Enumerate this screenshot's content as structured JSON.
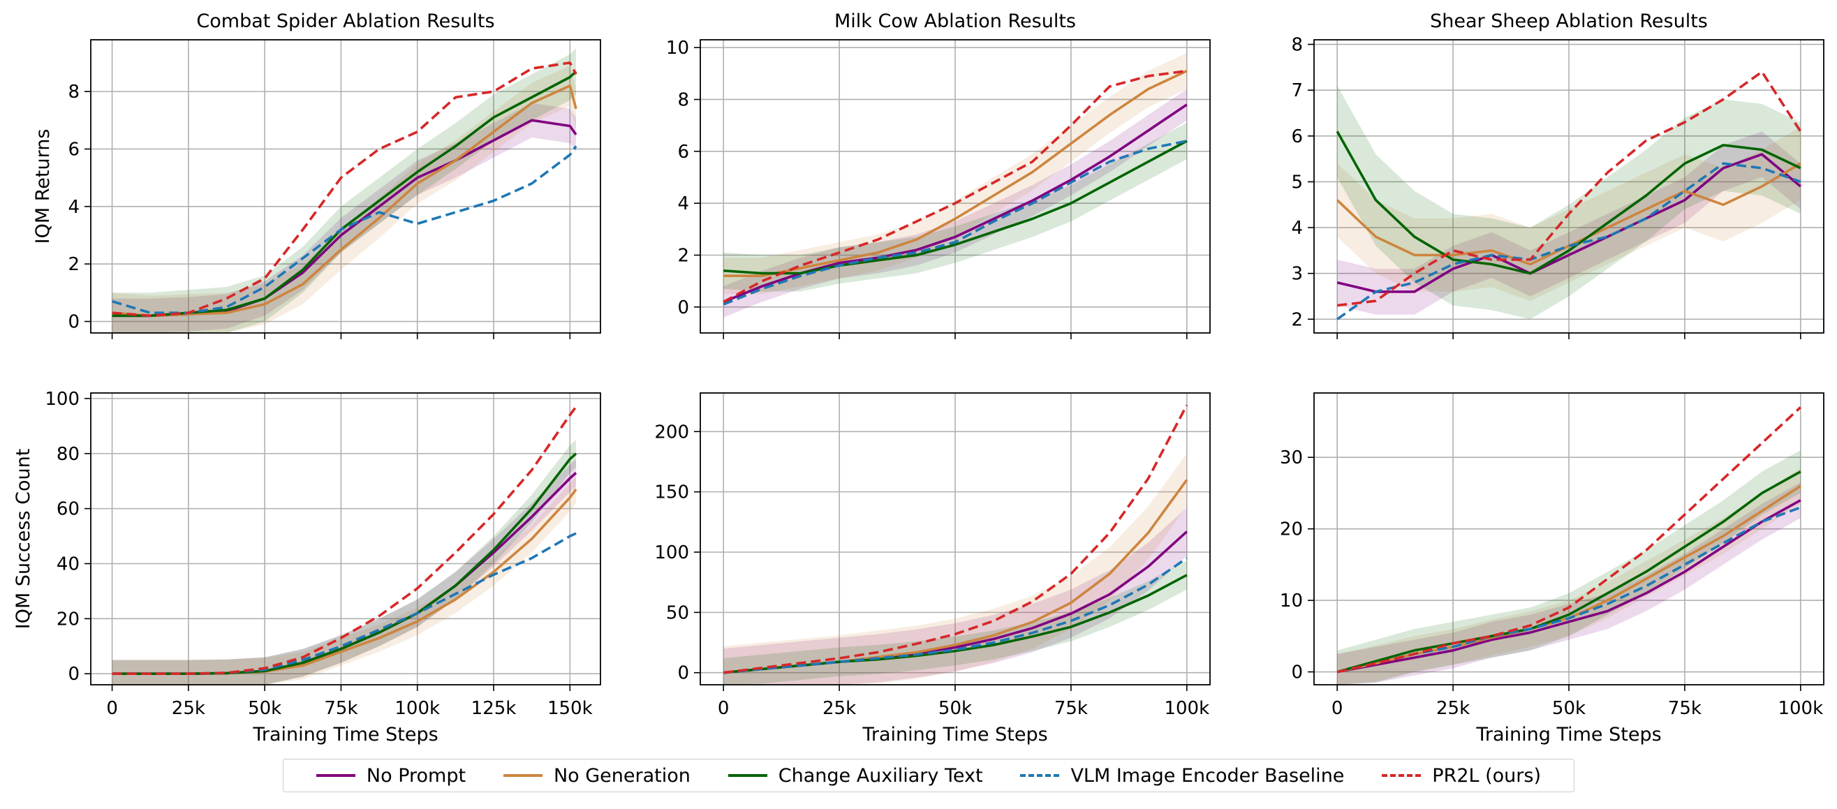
{
  "legend": [
    {
      "name": "No Prompt",
      "color": "#800080",
      "dash": false
    },
    {
      "name": "No Generation",
      "color": "#cd853f",
      "dash": false
    },
    {
      "name": "Change Auxiliary Text",
      "color": "#006400",
      "dash": false
    },
    {
      "name": "VLM Image Encoder Baseline",
      "color": "#1f77b4",
      "dash": true
    },
    {
      "name": "PR2L (ours)",
      "color": "#d62728",
      "dash": true
    }
  ],
  "chart_data": [
    {
      "type": "line",
      "title": "Combat Spider Ablation Results",
      "xlabel": "",
      "ylabel": "IQM Returns",
      "xlim": [
        -7000,
        160000
      ],
      "ylim": [
        -0.4,
        9.8
      ],
      "xticks": [
        0,
        25000,
        50000,
        75000,
        100000,
        125000,
        150000
      ],
      "xtick_labels": [
        "",
        "",
        "",
        "",
        "",
        "",
        ""
      ],
      "yticks": [
        0,
        2,
        4,
        6,
        8
      ],
      "ytick_labels": [
        "0",
        "2",
        "4",
        "6",
        "8"
      ],
      "grid": true,
      "x": [
        0,
        12500,
        25000,
        37500,
        50000,
        62500,
        75000,
        87500,
        100000,
        112500,
        125000,
        137500,
        150000,
        152000
      ],
      "series": [
        {
          "name": "No Prompt",
          "values": [
            0.2,
            0.2,
            0.25,
            0.35,
            0.8,
            1.7,
            3.0,
            4.0,
            5.0,
            5.6,
            6.3,
            7.0,
            6.8,
            6.5
          ],
          "band": 0.6
        },
        {
          "name": "No Generation",
          "values": [
            0.3,
            0.2,
            0.25,
            0.3,
            0.6,
            1.3,
            2.5,
            3.6,
            4.8,
            5.6,
            6.6,
            7.6,
            8.2,
            7.4
          ],
          "band": 0.7
        },
        {
          "name": "Change Auxiliary Text",
          "values": [
            0.2,
            0.2,
            0.3,
            0.4,
            0.8,
            1.8,
            3.2,
            4.2,
            5.2,
            6.1,
            7.1,
            7.8,
            8.5,
            8.7
          ],
          "band": 0.8
        },
        {
          "name": "VLM Image Encoder Baseline",
          "values": [
            0.7,
            0.3,
            0.3,
            0.5,
            1.2,
            2.2,
            3.2,
            3.8,
            3.4,
            3.8,
            4.2,
            4.8,
            5.8,
            6.1
          ],
          "band": 0
        },
        {
          "name": "PR2L (ours)",
          "values": [
            0.3,
            0.2,
            0.3,
            0.8,
            1.5,
            3.2,
            5.0,
            6.0,
            6.6,
            7.8,
            8.0,
            8.8,
            9.0,
            8.6
          ],
          "band": 0
        }
      ]
    },
    {
      "type": "line",
      "title": "Milk Cow Ablation Results",
      "xlabel": "",
      "ylabel": "",
      "xlim": [
        -5000,
        105000
      ],
      "ylim": [
        -1.0,
        10.3
      ],
      "xticks": [
        0,
        25000,
        50000,
        75000,
        100000
      ],
      "xtick_labels": [
        "",
        "",
        "",
        "",
        ""
      ],
      "yticks": [
        0,
        2,
        4,
        6,
        8,
        10
      ],
      "ytick_labels": [
        "0",
        "2",
        "4",
        "6",
        "8",
        "10"
      ],
      "grid": true,
      "x": [
        0,
        8333,
        16667,
        25000,
        33333,
        41667,
        50000,
        58333,
        66667,
        75000,
        83333,
        91667,
        100000
      ],
      "series": [
        {
          "name": "No Prompt",
          "values": [
            0.2,
            0.8,
            1.3,
            1.7,
            1.9,
            2.2,
            2.7,
            3.4,
            4.1,
            4.9,
            5.8,
            6.8,
            7.8
          ],
          "band": 0.6
        },
        {
          "name": "No Generation",
          "values": [
            1.2,
            1.2,
            1.5,
            1.8,
            2.1,
            2.6,
            3.4,
            4.3,
            5.2,
            6.3,
            7.4,
            8.4,
            9.1
          ],
          "band": 0.7
        },
        {
          "name": "Change Auxiliary Text",
          "values": [
            1.4,
            1.3,
            1.3,
            1.6,
            1.8,
            2.0,
            2.4,
            2.9,
            3.4,
            4.0,
            4.8,
            5.6,
            6.4
          ],
          "band": 0.7
        },
        {
          "name": "VLM Image Encoder Baseline",
          "values": [
            0.1,
            0.7,
            1.2,
            1.6,
            1.9,
            2.1,
            2.5,
            3.3,
            4.0,
            4.8,
            5.6,
            6.1,
            6.4
          ],
          "band": 0
        },
        {
          "name": "PR2L (ours)",
          "values": [
            0.2,
            1.0,
            1.6,
            2.1,
            2.6,
            3.3,
            4.0,
            4.8,
            5.6,
            7.0,
            8.5,
            8.9,
            9.1
          ],
          "band": 0
        }
      ]
    },
    {
      "type": "line",
      "title": "Shear Sheep Ablation Results",
      "xlabel": "",
      "ylabel": "",
      "xlim": [
        -5000,
        105000
      ],
      "ylim": [
        1.7,
        8.1
      ],
      "xticks": [
        0,
        25000,
        50000,
        75000,
        100000
      ],
      "xtick_labels": [
        "",
        "",
        "",
        "",
        ""
      ],
      "yticks": [
        2,
        3,
        4,
        5,
        6,
        7,
        8
      ],
      "ytick_labels": [
        "2",
        "3",
        "4",
        "5",
        "6",
        "7",
        "8"
      ],
      "grid": true,
      "x": [
        0,
        8333,
        16667,
        25000,
        33333,
        41667,
        50000,
        58333,
        66667,
        75000,
        83333,
        91667,
        100000
      ],
      "series": [
        {
          "name": "No Prompt",
          "values": [
            2.8,
            2.6,
            2.6,
            3.1,
            3.4,
            3.0,
            3.4,
            3.8,
            4.2,
            4.6,
            5.3,
            5.6,
            4.9
          ],
          "band": 0.5
        },
        {
          "name": "No Generation",
          "values": [
            4.6,
            3.8,
            3.4,
            3.4,
            3.5,
            3.2,
            3.6,
            4.0,
            4.4,
            4.8,
            4.5,
            4.9,
            5.4
          ],
          "band": 0.8
        },
        {
          "name": "Change Auxiliary Text",
          "values": [
            6.1,
            4.6,
            3.8,
            3.3,
            3.2,
            3.0,
            3.5,
            4.1,
            4.7,
            5.4,
            5.8,
            5.7,
            5.3
          ],
          "band": 1.0
        },
        {
          "name": "VLM Image Encoder Baseline",
          "values": [
            2.0,
            2.6,
            2.8,
            3.2,
            3.4,
            3.3,
            3.6,
            3.8,
            4.2,
            4.8,
            5.4,
            5.3,
            5.0
          ],
          "band": 0
        },
        {
          "name": "PR2L (ours)",
          "values": [
            2.3,
            2.4,
            3.0,
            3.5,
            3.3,
            3.3,
            4.3,
            5.2,
            5.9,
            6.3,
            6.8,
            7.4,
            6.1
          ],
          "band": 0
        }
      ]
    },
    {
      "type": "line",
      "title": "",
      "xlabel": "Training Time Steps",
      "ylabel": "IQM Success Count",
      "xlim": [
        -7000,
        160000
      ],
      "ylim": [
        -4,
        102
      ],
      "xticks": [
        0,
        25000,
        50000,
        75000,
        100000,
        125000,
        150000
      ],
      "xtick_labels": [
        "0",
        "25k",
        "50k",
        "75k",
        "100k",
        "125k",
        "150k"
      ],
      "yticks": [
        0,
        20,
        40,
        60,
        80,
        100
      ],
      "ytick_labels": [
        "0",
        "20",
        "40",
        "60",
        "80",
        "100"
      ],
      "grid": true,
      "x": [
        0,
        12500,
        25000,
        37500,
        50000,
        62500,
        75000,
        87500,
        100000,
        112500,
        125000,
        137500,
        150000,
        152000
      ],
      "series": [
        {
          "name": "No Prompt",
          "values": [
            0,
            0,
            0,
            0.2,
            1,
            4,
            9,
            15,
            22,
            32,
            44,
            57,
            71,
            73
          ],
          "band": 5
        },
        {
          "name": "No Generation",
          "values": [
            0,
            0,
            0,
            0.2,
            0.8,
            3,
            8,
            13,
            19,
            27,
            37,
            49,
            64,
            67
          ],
          "band": 5
        },
        {
          "name": "Change Auxiliary Text",
          "values": [
            0,
            0,
            0,
            0.2,
            1,
            4,
            9,
            15,
            22,
            32,
            45,
            60,
            78,
            80
          ],
          "band": 5
        },
        {
          "name": "VLM Image Encoder Baseline",
          "values": [
            0,
            0,
            0,
            0.3,
            1.5,
            5,
            10,
            16,
            22,
            29,
            36,
            42,
            50,
            51
          ],
          "band": 0
        },
        {
          "name": "PR2L (ours)",
          "values": [
            0,
            0,
            0,
            0.3,
            2,
            6,
            13,
            21,
            31,
            44,
            58,
            74,
            94,
            97
          ],
          "band": 0
        }
      ]
    },
    {
      "type": "line",
      "title": "",
      "xlabel": "Training Time Steps",
      "ylabel": "",
      "xlim": [
        -5000,
        105000
      ],
      "ylim": [
        -10,
        232
      ],
      "xticks": [
        0,
        25000,
        50000,
        75000,
        100000
      ],
      "xtick_labels": [
        "0",
        "25k",
        "50k",
        "75k",
        "100k"
      ],
      "yticks": [
        0,
        50,
        100,
        150,
        200
      ],
      "ytick_labels": [
        "0",
        "50",
        "100",
        "150",
        "200"
      ],
      "grid": true,
      "x": [
        0,
        8333,
        16667,
        25000,
        33333,
        41667,
        50000,
        58333,
        66667,
        75000,
        83333,
        91667,
        100000
      ],
      "series": [
        {
          "name": "No Prompt",
          "values": [
            0,
            3,
            6,
            9,
            12,
            16,
            21,
            28,
            37,
            49,
            65,
            88,
            117
          ],
          "band": 20
        },
        {
          "name": "No Generation",
          "values": [
            0,
            3,
            6,
            9,
            13,
            17,
            23,
            31,
            42,
            58,
            82,
            116,
            160
          ],
          "band": 22
        },
        {
          "name": "Change Auxiliary Text",
          "values": [
            0,
            3,
            6,
            9,
            11,
            14,
            18,
            23,
            30,
            38,
            50,
            64,
            81
          ],
          "band": 12
        },
        {
          "name": "VLM Image Encoder Baseline",
          "values": [
            0,
            3,
            6,
            9,
            12,
            15,
            19,
            25,
            33,
            43,
            56,
            73,
            95
          ],
          "band": 0
        },
        {
          "name": "PR2L (ours)",
          "values": [
            0,
            4,
            8,
            12,
            17,
            24,
            32,
            43,
            59,
            82,
            116,
            161,
            222
          ],
          "band": 0
        }
      ]
    },
    {
      "type": "line",
      "title": "",
      "xlabel": "Training Time Steps",
      "ylabel": "",
      "xlim": [
        -5000,
        105000
      ],
      "ylim": [
        -1.8,
        39
      ],
      "xticks": [
        0,
        25000,
        50000,
        75000,
        100000
      ],
      "xtick_labels": [
        "0",
        "25k",
        "50k",
        "75k",
        "100k"
      ],
      "yticks": [
        0,
        10,
        20,
        30
      ],
      "ytick_labels": [
        "0",
        "10",
        "20",
        "30"
      ],
      "grid": true,
      "x": [
        0,
        8333,
        16667,
        25000,
        33333,
        41667,
        50000,
        58333,
        66667,
        75000,
        83333,
        91667,
        100000
      ],
      "series": [
        {
          "name": "No Prompt",
          "values": [
            0,
            1,
            2,
            3,
            4.5,
            5.5,
            7,
            8.5,
            11,
            14,
            17.5,
            21,
            24
          ],
          "band": 2.5
        },
        {
          "name": "No Generation",
          "values": [
            0,
            1.2,
            2.5,
            3.5,
            4.8,
            6,
            7.5,
            10,
            13,
            16,
            19,
            22.5,
            26
          ],
          "band": 2.5
        },
        {
          "name": "Change Auxiliary Text",
          "values": [
            0,
            1.5,
            3,
            4,
            5,
            6,
            8,
            11,
            14,
            17.5,
            21,
            25,
            28
          ],
          "band": 3
        },
        {
          "name": "VLM Image Encoder Baseline",
          "values": [
            0,
            1.2,
            2.5,
            3.5,
            5,
            6,
            7.5,
            9.5,
            12,
            15,
            18,
            21,
            23
          ],
          "band": 0
        },
        {
          "name": "PR2L (ours)",
          "values": [
            0,
            1.2,
            2.5,
            4,
            5,
            6.5,
            9,
            13,
            17,
            22,
            27,
            32,
            37
          ],
          "band": 0
        }
      ]
    }
  ]
}
